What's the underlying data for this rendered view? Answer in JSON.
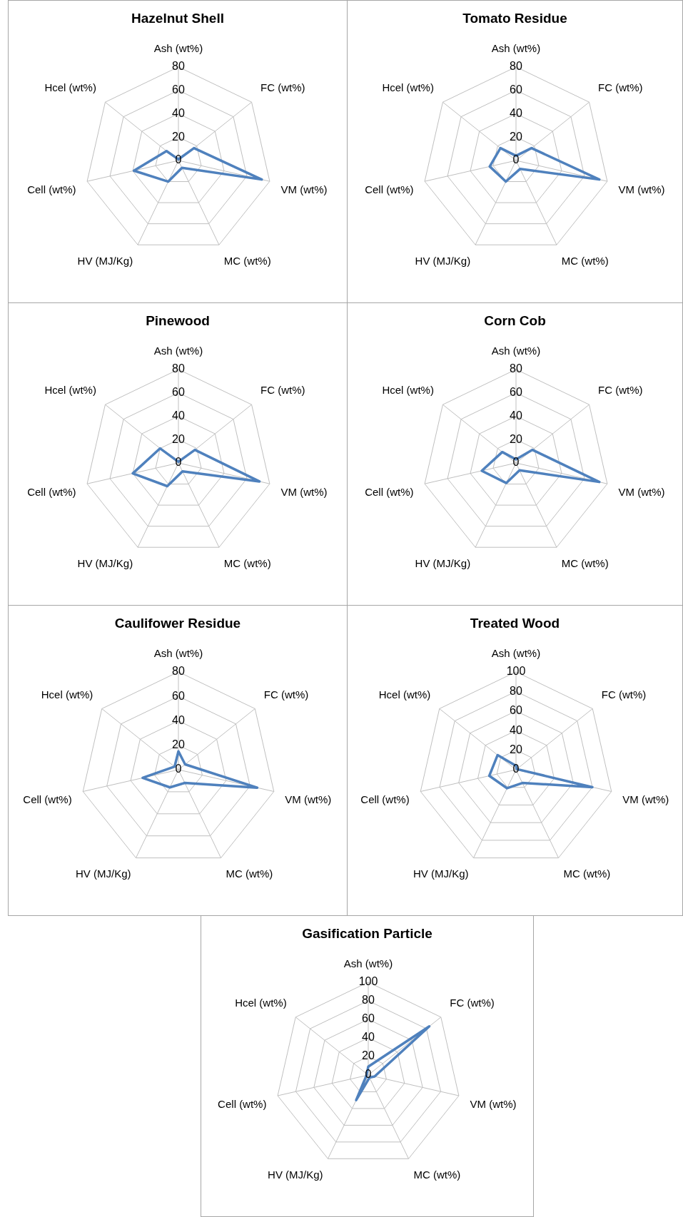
{
  "chart_data": [
    {
      "type": "radar",
      "title": "Hazelnut Shell",
      "categories": [
        "Ash (wt%)",
        "FC (wt%)",
        "VM (wt%)",
        "MC (wt%)",
        "HV (MJ/Kg)",
        "Cell (wt%)",
        "Hcel (wt%)"
      ],
      "series": [
        {
          "color": "#4f81bd",
          "values": [
            1,
            17,
            73,
            7,
            20,
            39,
            13
          ]
        }
      ],
      "ylim": [
        0,
        80
      ],
      "yticks": [
        0,
        20,
        40,
        60,
        80
      ],
      "grid": true,
      "marker": "none",
      "legend": false
    },
    {
      "type": "radar",
      "title": "Tomato Residue",
      "categories": [
        "Ash (wt%)",
        "FC (wt%)",
        "VM (wt%)",
        "MC (wt%)",
        "HV (MJ/Kg)",
        "Cell (wt%)",
        "Hcel (wt%)"
      ],
      "series": [
        {
          "color": "#4f81bd",
          "values": [
            4,
            17,
            73,
            8,
            20,
            23,
            17
          ]
        }
      ],
      "ylim": [
        0,
        80
      ],
      "yticks": [
        0,
        20,
        40,
        60,
        80
      ],
      "grid": true,
      "marker": "none",
      "legend": false
    },
    {
      "type": "radar",
      "title": "Pinewood",
      "categories": [
        "Ash (wt%)",
        "FC (wt%)",
        "VM (wt%)",
        "MC (wt%)",
        "HV (MJ/Kg)",
        "Cell (wt%)",
        "Hcel (wt%)"
      ],
      "series": [
        {
          "color": "#4f81bd",
          "values": [
            1,
            18,
            71,
            8,
            22,
            40,
            20
          ]
        }
      ],
      "ylim": [
        0,
        80
      ],
      "yticks": [
        0,
        20,
        40,
        60,
        80
      ],
      "grid": true,
      "marker": "none",
      "legend": false
    },
    {
      "type": "radar",
      "title": "Corn Cob",
      "categories": [
        "Ash (wt%)",
        "FC (wt%)",
        "VM (wt%)",
        "MC (wt%)",
        "HV (MJ/Kg)",
        "Cell (wt%)",
        "Hcel (wt%)"
      ],
      "series": [
        {
          "color": "#4f81bd",
          "values": [
            3,
            18,
            73,
            7,
            19,
            30,
            15
          ]
        }
      ],
      "ylim": [
        0,
        80
      ],
      "yticks": [
        0,
        20,
        40,
        60,
        80
      ],
      "grid": true,
      "marker": "none",
      "legend": false
    },
    {
      "type": "radar",
      "title": "Caulifower Residue",
      "categories": [
        "Ash (wt%)",
        "FC (wt%)",
        "VM (wt%)",
        "MC (wt%)",
        "HV (MJ/Kg)",
        "Cell (wt%)",
        "Hcel (wt%)"
      ],
      "series": [
        {
          "color": "#4f81bd",
          "values": [
            15,
            7,
            66,
            12,
            16,
            30,
            4
          ]
        }
      ],
      "ylim": [
        0,
        80
      ],
      "yticks": [
        0,
        20,
        40,
        60,
        80
      ],
      "grid": true,
      "marker": "none",
      "legend": false
    },
    {
      "type": "radar",
      "title": "Treated Wood",
      "categories": [
        "Ash (wt%)",
        "FC (wt%)",
        "VM (wt%)",
        "MC (wt%)",
        "HV (MJ/Kg)",
        "Cell (wt%)",
        "Hcel (wt%)"
      ],
      "series": [
        {
          "color": "#4f81bd",
          "values": [
            4,
            1,
            80,
            15,
            21,
            28,
            24
          ]
        }
      ],
      "ylim": [
        0,
        100
      ],
      "yticks": [
        0,
        20,
        40,
        60,
        80,
        100
      ],
      "grid": true,
      "marker": "none",
      "legend": false
    },
    {
      "type": "radar",
      "title": "Gasification Particle",
      "categories": [
        "Ash (wt%)",
        "FC (wt%)",
        "VM (wt%)",
        "MC (wt%)",
        "HV (MJ/Kg)",
        "Cell (wt%)",
        "Hcel (wt%)"
      ],
      "series": [
        {
          "color": "#4f81bd",
          "values": [
            9,
            84,
            7,
            3,
            30,
            2,
            2
          ]
        }
      ],
      "ylim": [
        0,
        100
      ],
      "yticks": [
        0,
        20,
        40,
        60,
        80,
        100
      ],
      "grid": true,
      "marker": "none",
      "legend": false
    }
  ]
}
